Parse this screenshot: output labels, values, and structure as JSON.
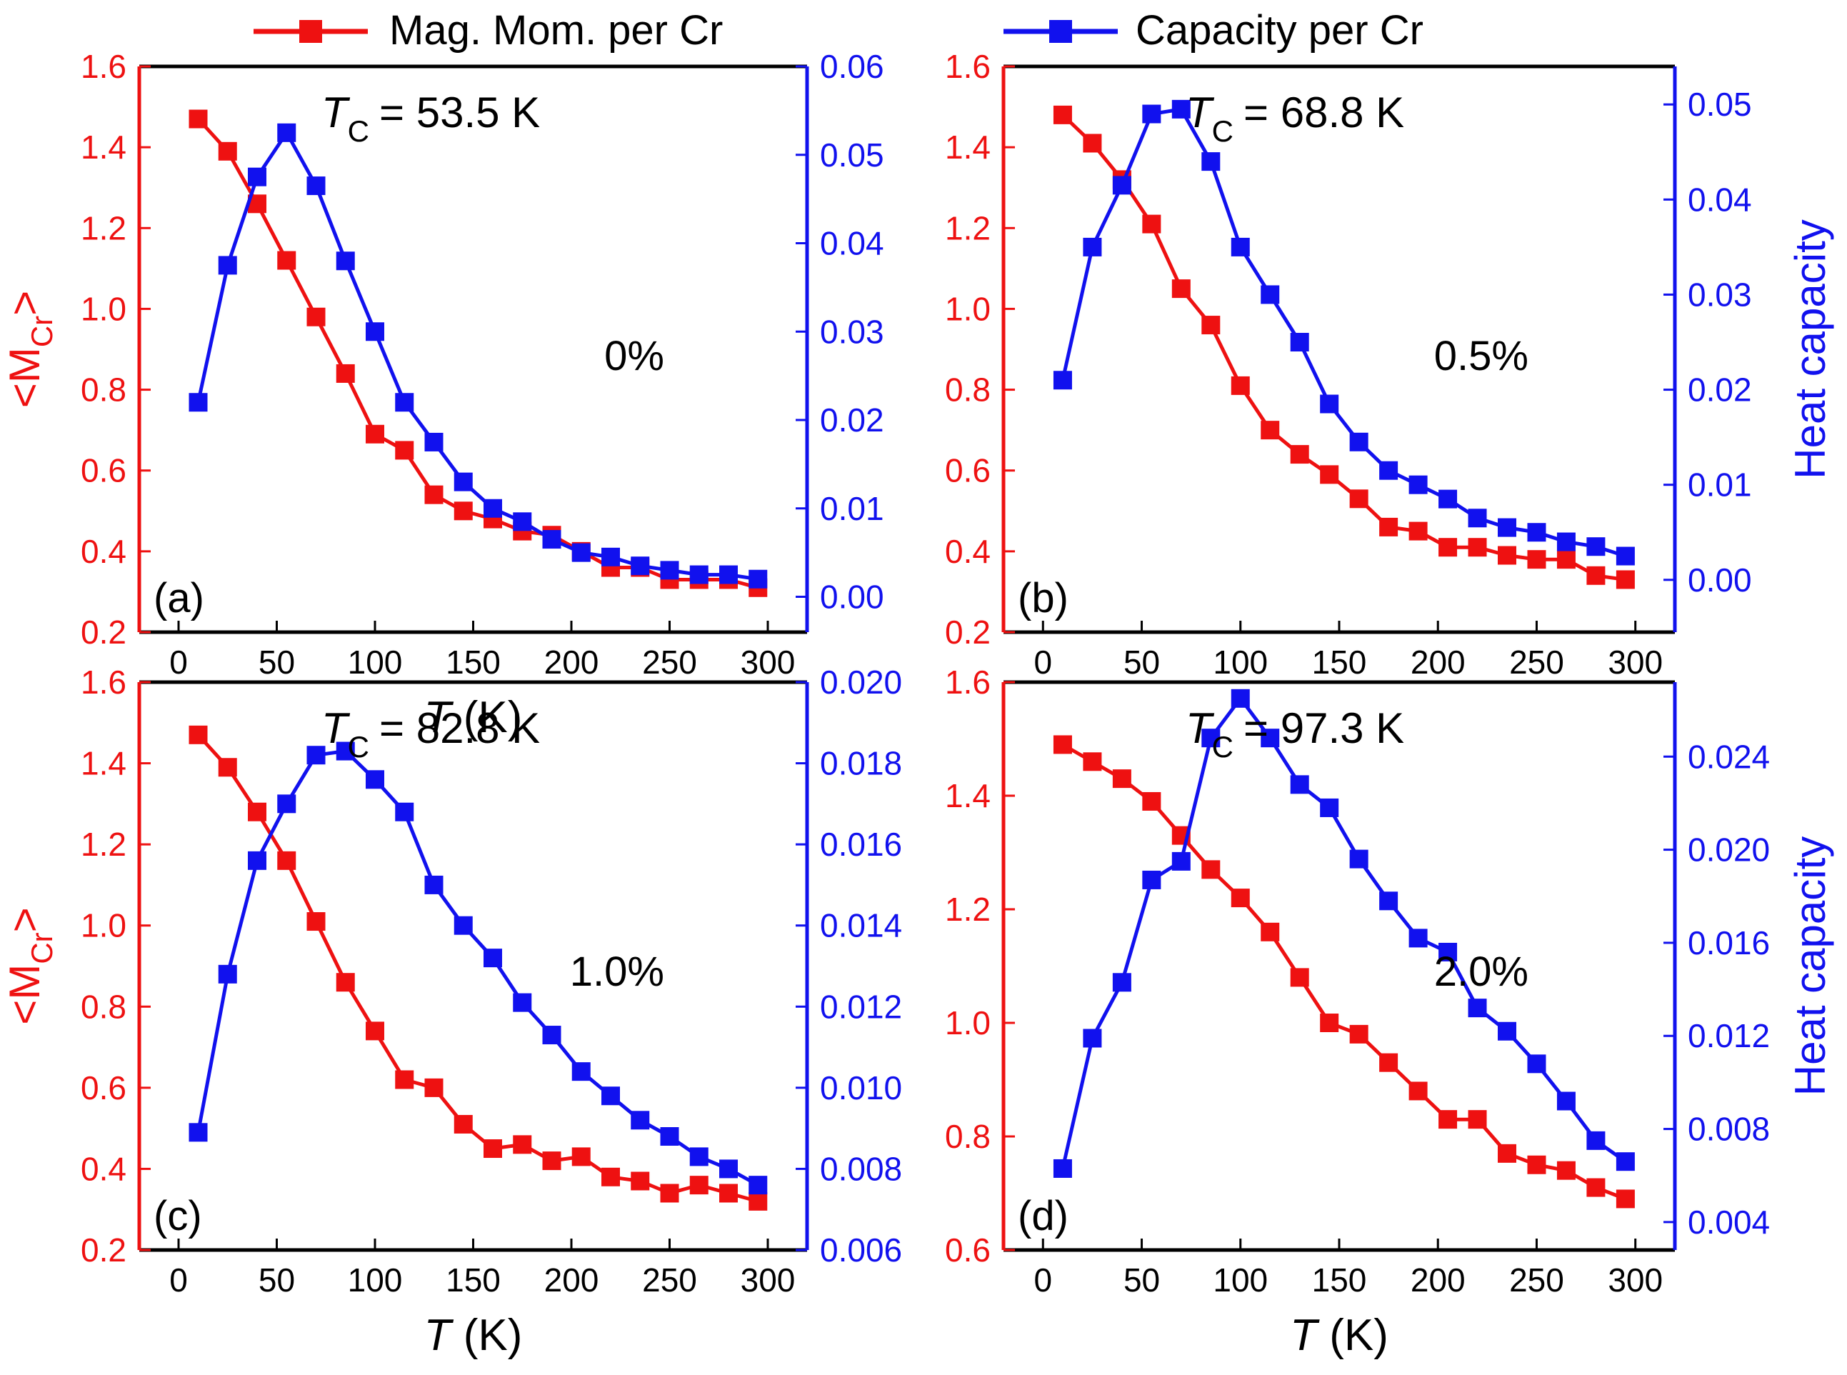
{
  "legend": {
    "position": "top",
    "entries": [
      {
        "label": "Mag. Mom. per Cr",
        "color": "#ee1111",
        "marker": "square"
      },
      {
        "label": "Capacity per Cr",
        "color": "#1111ee",
        "marker": "square"
      }
    ]
  },
  "colors": {
    "red": "#ee1111",
    "blue": "#1111ee",
    "axis": "#000000"
  },
  "chart_data": [
    {
      "type": "line",
      "panel": "(a)",
      "annotation": "0%",
      "tc_symbol": "T",
      "tc_subscript": "C",
      "tc_value": "= 53.5 K",
      "xlabel_symbol": "T",
      "xlabel_unit": "(K)",
      "xlim": [
        -20,
        320
      ],
      "xticks": [
        0,
        50,
        100,
        150,
        200,
        250,
        300
      ],
      "left_axis": {
        "label_main": "<M",
        "label_sub": "Cr",
        "label_end": ">",
        "ylim": [
          0.2,
          1.6
        ],
        "ticks": [
          0.2,
          0.4,
          0.6,
          0.8,
          1.0,
          1.2,
          1.4,
          1.6
        ],
        "tick_labels": [
          "0.2",
          "0.4",
          "0.6",
          "0.8",
          "1.0",
          "1.2",
          "1.4",
          "1.6"
        ]
      },
      "right_axis": {
        "label": "",
        "ylim": [
          -0.004,
          0.06
        ],
        "ticks": [
          0,
          0.01,
          0.02,
          0.03,
          0.04,
          0.05,
          0.06
        ],
        "tick_labels": [
          "0.00",
          "0.01",
          "0.02",
          "0.03",
          "0.04",
          "0.05",
          "0.06"
        ]
      },
      "x": [
        10,
        25,
        40,
        55,
        70,
        85,
        100,
        115,
        130,
        145,
        160,
        175,
        190,
        205,
        220,
        235,
        250,
        265,
        280,
        295
      ],
      "series": [
        {
          "name": "Mag. Mom. per Cr",
          "axis": "left",
          "values": [
            1.47,
            1.39,
            1.26,
            1.12,
            0.98,
            0.84,
            0.69,
            0.65,
            0.54,
            0.5,
            0.48,
            0.45,
            0.44,
            0.4,
            0.36,
            0.36,
            0.33,
            0.33,
            0.33,
            0.31
          ]
        },
        {
          "name": "Capacity per Cr",
          "axis": "right",
          "values": [
            0.022,
            0.0375,
            0.0475,
            0.0525,
            0.0465,
            0.038,
            0.03,
            0.022,
            0.0175,
            0.013,
            0.01,
            0.0085,
            0.0065,
            0.005,
            0.0045,
            0.0035,
            0.003,
            0.0025,
            0.0025,
            0.002
          ]
        }
      ]
    },
    {
      "type": "line",
      "panel": "(b)",
      "annotation": "0.5%",
      "tc_symbol": "T",
      "tc_subscript": "C",
      "tc_value": "= 68.8 K",
      "xlabel_symbol": "",
      "xlabel_unit": "",
      "xlim": [
        -20,
        320
      ],
      "xticks": [
        0,
        50,
        100,
        150,
        200,
        250,
        300
      ],
      "left_axis": {
        "label_main": "",
        "label_sub": "",
        "label_end": "",
        "ylim": [
          0.2,
          1.6
        ],
        "ticks": [
          0.2,
          0.4,
          0.6,
          0.8,
          1.0,
          1.2,
          1.4,
          1.6
        ],
        "tick_labels": [
          "0.2",
          "0.4",
          "0.6",
          "0.8",
          "1.0",
          "1.2",
          "1.4",
          "1.6"
        ]
      },
      "right_axis": {
        "label": "Heat capacity",
        "ylim": [
          -0.0055,
          0.054
        ],
        "ticks": [
          0,
          0.01,
          0.02,
          0.03,
          0.04,
          0.05
        ],
        "tick_labels": [
          "0.00",
          "0.01",
          "0.02",
          "0.03",
          "0.04",
          "0.05"
        ]
      },
      "x": [
        10,
        25,
        40,
        55,
        70,
        85,
        100,
        115,
        130,
        145,
        160,
        175,
        190,
        205,
        220,
        235,
        250,
        265,
        280,
        295
      ],
      "series": [
        {
          "name": "Mag. Mom. per Cr",
          "axis": "left",
          "values": [
            1.48,
            1.41,
            1.32,
            1.21,
            1.05,
            0.96,
            0.81,
            0.7,
            0.64,
            0.59,
            0.53,
            0.46,
            0.45,
            0.41,
            0.41,
            0.39,
            0.38,
            0.38,
            0.34,
            0.33
          ]
        },
        {
          "name": "Capacity per Cr",
          "axis": "right",
          "values": [
            0.021,
            0.035,
            0.0415,
            0.049,
            0.0495,
            0.044,
            0.035,
            0.03,
            0.025,
            0.0185,
            0.0145,
            0.0115,
            0.01,
            0.0085,
            0.0065,
            0.0055,
            0.005,
            0.004,
            0.0035,
            0.0025
          ]
        }
      ]
    },
    {
      "type": "line",
      "panel": "(c)",
      "annotation": "1.0%",
      "tc_symbol": "T",
      "tc_subscript": "C",
      "tc_value": "= 82.8 K",
      "xlabel_symbol": "T",
      "xlabel_unit": "(K)",
      "xlim": [
        -20,
        320
      ],
      "xticks": [
        0,
        50,
        100,
        150,
        200,
        250,
        300
      ],
      "left_axis": {
        "label_main": "<M",
        "label_sub": "Cr",
        "label_end": ">",
        "ylim": [
          0.2,
          1.6
        ],
        "ticks": [
          0.2,
          0.4,
          0.6,
          0.8,
          1.0,
          1.2,
          1.4,
          1.6
        ],
        "tick_labels": [
          "0.2",
          "0.4",
          "0.6",
          "0.8",
          "1.0",
          "1.2",
          "1.4",
          "1.6"
        ]
      },
      "right_axis": {
        "label": "",
        "ylim": [
          0.006,
          0.02
        ],
        "ticks": [
          0.006,
          0.008,
          0.01,
          0.012,
          0.014,
          0.016,
          0.018,
          0.02
        ],
        "tick_labels": [
          "0.006",
          "0.008",
          "0.010",
          "0.012",
          "0.014",
          "0.016",
          "0.018",
          "0.020"
        ]
      },
      "x": [
        10,
        25,
        40,
        55,
        70,
        85,
        100,
        115,
        130,
        145,
        160,
        175,
        190,
        205,
        220,
        235,
        250,
        265,
        280,
        295
      ],
      "series": [
        {
          "name": "Mag. Mom. per Cr",
          "axis": "left",
          "values": [
            1.47,
            1.39,
            1.28,
            1.16,
            1.01,
            0.86,
            0.74,
            0.62,
            0.6,
            0.51,
            0.45,
            0.46,
            0.42,
            0.43,
            0.38,
            0.37,
            0.34,
            0.36,
            0.34,
            0.32
          ]
        },
        {
          "name": "Capacity per Cr",
          "axis": "right",
          "values": [
            0.0089,
            0.0128,
            0.0156,
            0.017,
            0.0182,
            0.0183,
            0.0176,
            0.0168,
            0.015,
            0.014,
            0.0132,
            0.0121,
            0.0113,
            0.0104,
            0.0098,
            0.0092,
            0.0088,
            0.0083,
            0.008,
            0.0076
          ]
        }
      ]
    },
    {
      "type": "line",
      "panel": "(d)",
      "annotation": "2.0%",
      "tc_symbol": "T",
      "tc_subscript": "C",
      "tc_value": "= 97.3 K",
      "xlabel_symbol": "T",
      "xlabel_unit": "(K)",
      "xlim": [
        -20,
        320
      ],
      "xticks": [
        0,
        50,
        100,
        150,
        200,
        250,
        300
      ],
      "left_axis": {
        "label_main": "",
        "label_sub": "",
        "label_end": "",
        "ylim": [
          0.6,
          1.6
        ],
        "ticks": [
          0.6,
          0.8,
          1.0,
          1.2,
          1.4,
          1.6
        ],
        "tick_labels": [
          "0.6",
          "0.8",
          "1.0",
          "1.2",
          "1.4",
          "1.6"
        ]
      },
      "right_axis": {
        "label": "Heat capacity",
        "ylim": [
          0.0028,
          0.0272
        ],
        "ticks": [
          0.004,
          0.008,
          0.012,
          0.016,
          0.02,
          0.024
        ],
        "tick_labels": [
          "0.004",
          "0.008",
          "0.012",
          "0.016",
          "0.020",
          "0.024"
        ]
      },
      "x": [
        10,
        25,
        40,
        55,
        70,
        85,
        100,
        115,
        130,
        145,
        160,
        175,
        190,
        205,
        220,
        235,
        250,
        265,
        280,
        295
      ],
      "series": [
        {
          "name": "Mag. Mom. per Cr",
          "axis": "left",
          "values": [
            1.49,
            1.46,
            1.43,
            1.39,
            1.33,
            1.27,
            1.22,
            1.16,
            1.08,
            1.0,
            0.98,
            0.93,
            0.88,
            0.83,
            0.83,
            0.77,
            0.75,
            0.74,
            0.71,
            0.69
          ]
        },
        {
          "name": "Capacity per Cr",
          "axis": "right",
          "values": [
            0.0063,
            0.0119,
            0.0143,
            0.0187,
            0.0195,
            0.0248,
            0.0265,
            0.0248,
            0.0228,
            0.0218,
            0.0196,
            0.0178,
            0.0162,
            0.0156,
            0.0132,
            0.0122,
            0.0108,
            0.0092,
            0.0075,
            0.0066
          ]
        }
      ]
    }
  ]
}
